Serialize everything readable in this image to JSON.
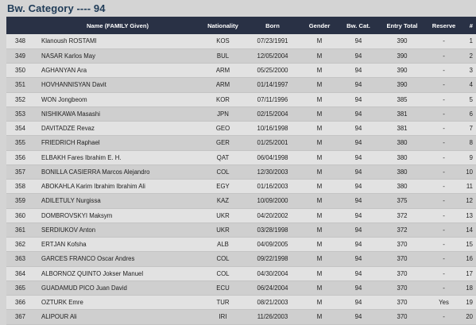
{
  "title": "Bw. Category ---- 94",
  "columns": [
    "",
    "Name (FAMILY Given)",
    "Nationality",
    "Born",
    "Gender",
    "Bw. Cat.",
    "Entry Total",
    "Reserve",
    "#"
  ],
  "rows": [
    {
      "id": "348",
      "name": "Klanoush ROSTAMI",
      "nationality": "KOS",
      "born": "07/23/1991",
      "gender": "M",
      "bw_cat": "94",
      "entry_total": "390",
      "reserve": "-",
      "rank": "1"
    },
    {
      "id": "349",
      "name": "NASAR Karlos May",
      "nationality": "BUL",
      "born": "12/05/2004",
      "gender": "M",
      "bw_cat": "94",
      "entry_total": "390",
      "reserve": "-",
      "rank": "2"
    },
    {
      "id": "350",
      "name": "AGHANYAN Ara",
      "nationality": "ARM",
      "born": "05/25/2000",
      "gender": "M",
      "bw_cat": "94",
      "entry_total": "390",
      "reserve": "-",
      "rank": "3"
    },
    {
      "id": "351",
      "name": "HOVHANNISYAN Davit",
      "nationality": "ARM",
      "born": "01/14/1997",
      "gender": "M",
      "bw_cat": "94",
      "entry_total": "390",
      "reserve": "-",
      "rank": "4"
    },
    {
      "id": "352",
      "name": "WON Jongbeom",
      "nationality": "KOR",
      "born": "07/11/1996",
      "gender": "M",
      "bw_cat": "94",
      "entry_total": "385",
      "reserve": "-",
      "rank": "5"
    },
    {
      "id": "353",
      "name": "NISHIKAWA Masashi",
      "nationality": "JPN",
      "born": "02/15/2004",
      "gender": "M",
      "bw_cat": "94",
      "entry_total": "381",
      "reserve": "-",
      "rank": "6"
    },
    {
      "id": "354",
      "name": "DAVITADZE Revaz",
      "nationality": "GEO",
      "born": "10/16/1998",
      "gender": "M",
      "bw_cat": "94",
      "entry_total": "381",
      "reserve": "-",
      "rank": "7"
    },
    {
      "id": "355",
      "name": "FRIEDRICH Raphael",
      "nationality": "GER",
      "born": "01/25/2001",
      "gender": "M",
      "bw_cat": "94",
      "entry_total": "380",
      "reserve": "-",
      "rank": "8"
    },
    {
      "id": "356",
      "name": "ELBAKH Fares Ibrahim E. H.",
      "nationality": "QAT",
      "born": "06/04/1998",
      "gender": "M",
      "bw_cat": "94",
      "entry_total": "380",
      "reserve": "-",
      "rank": "9"
    },
    {
      "id": "357",
      "name": "BONILLA CASIERRA Marcos Alejandro",
      "nationality": "COL",
      "born": "12/30/2003",
      "gender": "M",
      "bw_cat": "94",
      "entry_total": "380",
      "reserve": "-",
      "rank": "10"
    },
    {
      "id": "358",
      "name": "ABOKAHLA Karim Ibrahim Ibrahim Ali",
      "nationality": "EGY",
      "born": "01/16/2003",
      "gender": "M",
      "bw_cat": "94",
      "entry_total": "380",
      "reserve": "-",
      "rank": "11"
    },
    {
      "id": "359",
      "name": "ADILETULY Nurgissa",
      "nationality": "KAZ",
      "born": "10/09/2000",
      "gender": "M",
      "bw_cat": "94",
      "entry_total": "375",
      "reserve": "-",
      "rank": "12"
    },
    {
      "id": "360",
      "name": "DOMBROVSKYI Maksym",
      "nationality": "UKR",
      "born": "04/20/2002",
      "gender": "M",
      "bw_cat": "94",
      "entry_total": "372",
      "reserve": "-",
      "rank": "13"
    },
    {
      "id": "361",
      "name": "SERDIUKOV Anton",
      "nationality": "UKR",
      "born": "03/28/1998",
      "gender": "M",
      "bw_cat": "94",
      "entry_total": "372",
      "reserve": "-",
      "rank": "14"
    },
    {
      "id": "362",
      "name": "ERTJAN Kofsha",
      "nationality": "ALB",
      "born": "04/09/2005",
      "gender": "M",
      "bw_cat": "94",
      "entry_total": "370",
      "reserve": "-",
      "rank": "15"
    },
    {
      "id": "363",
      "name": "GARCES FRANCO Oscar Andres",
      "nationality": "COL",
      "born": "09/22/1998",
      "gender": "M",
      "bw_cat": "94",
      "entry_total": "370",
      "reserve": "-",
      "rank": "16"
    },
    {
      "id": "364",
      "name": "ALBORNOZ QUINTO Jokser Manuel",
      "nationality": "COL",
      "born": "04/30/2004",
      "gender": "M",
      "bw_cat": "94",
      "entry_total": "370",
      "reserve": "-",
      "rank": "17"
    },
    {
      "id": "365",
      "name": "GUADAMUD PICO Juan David",
      "nationality": "ECU",
      "born": "06/24/2004",
      "gender": "M",
      "bw_cat": "94",
      "entry_total": "370",
      "reserve": "-",
      "rank": "18"
    },
    {
      "id": "366",
      "name": "OZTURK Emre",
      "nationality": "TUR",
      "born": "08/21/2003",
      "gender": "M",
      "bw_cat": "94",
      "entry_total": "370",
      "reserve": "Yes",
      "rank": "19"
    },
    {
      "id": "367",
      "name": "ALIPOUR Ali",
      "nationality": "IRI",
      "born": "11/26/2003",
      "gender": "M",
      "bw_cat": "94",
      "entry_total": "370",
      "reserve": "-",
      "rank": "20"
    }
  ]
}
